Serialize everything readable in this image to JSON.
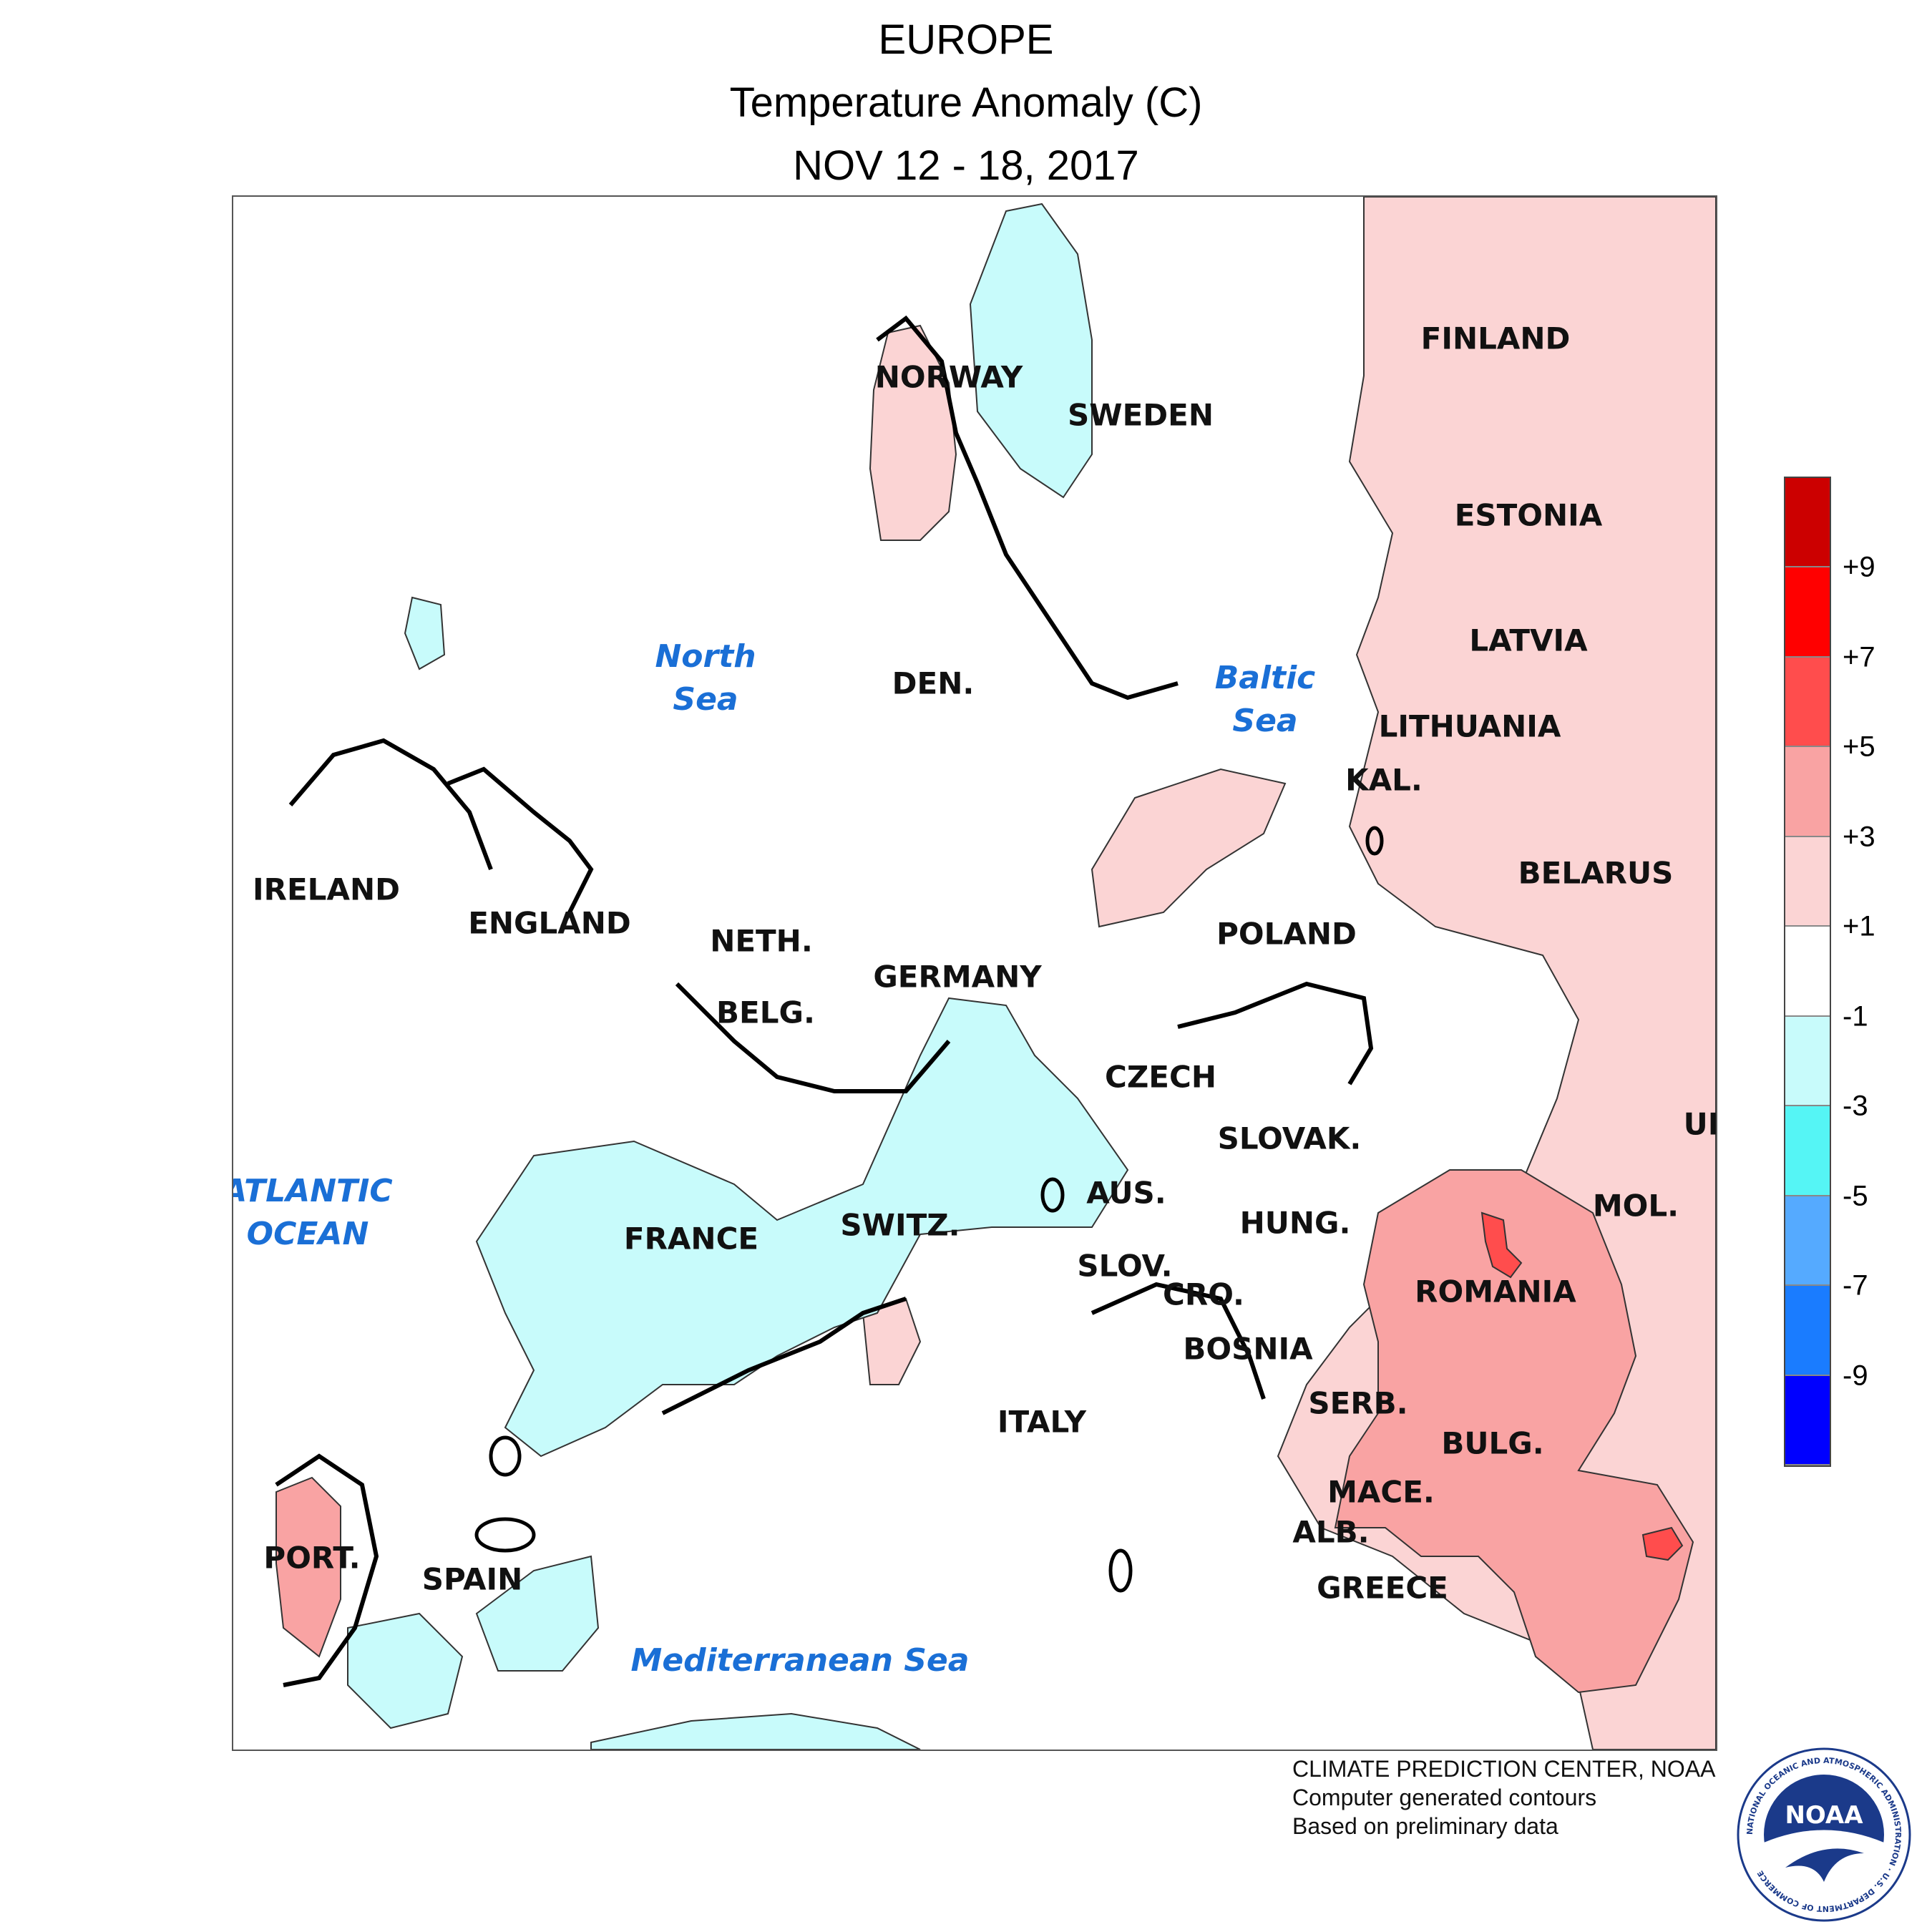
{
  "title": {
    "region": "EUROPE",
    "variable": "Temperature Anomaly (C)",
    "period": "NOV 12 - 18, 2017"
  },
  "countries": {
    "finland": "FINLAND",
    "norway": "NORWAY",
    "sweden": "SWEDEN",
    "estonia": "ESTONIA",
    "latvia": "LATVIA",
    "lithuania": "LITHUANIA",
    "denmark": "DEN.",
    "kaliningrad": "KAL.",
    "belarus": "BELARUS",
    "ireland": "IRELAND",
    "england": "ENGLAND",
    "poland": "POLAND",
    "netherlands": "NETH.",
    "germany": "GERMANY",
    "belgium": "BELG.",
    "czech": "CZECH",
    "ukraine": "UK",
    "slovakia": "SLOVAK.",
    "austria": "AUS.",
    "hungary": "HUNG.",
    "moldova": "MOL.",
    "france": "FRANCE",
    "switzerland": "SWITZ.",
    "slovenia": "SLOV.",
    "croatia": "CRO.",
    "romania": "ROMANIA",
    "bosnia": "BOSNIA",
    "serbia": "SERB.",
    "italy": "ITALY",
    "bulgaria": "BULG.",
    "macedonia": "MACE.",
    "albania": "ALB.",
    "portugal": "PORT.",
    "spain": "SPAIN",
    "greece": "GREECE"
  },
  "seas": {
    "north_sea": "North\nSea",
    "baltic_sea": "Baltic\nSea",
    "atlantic": "ATLANTIC\nOCEAN",
    "mediterranean": "Mediterranean Sea"
  },
  "legend": {
    "ticks": [
      "+9",
      "+7",
      "+5",
      "+3",
      "+1",
      "-1",
      "-3",
      "-5",
      "-7",
      "-9"
    ],
    "colors": [
      "#cc0000",
      "#ff0000",
      "#ff4d4d",
      "#f9a3a3",
      "#fbd4d4",
      "#ffffff",
      "#c8fbfb",
      "#55f5f5",
      "#55aaff",
      "#1a7cff",
      "#0000ff"
    ]
  },
  "credit": {
    "line1": "CLIMATE PREDICTION CENTER, NOAA",
    "line2": "Computer generated contours",
    "line3": "Based on preliminary data"
  },
  "logo": {
    "text": "NOAA",
    "ring_text": "NATIONAL OCEANIC AND ATMOSPHERIC ADMINISTRATION · U.S. DEPARTMENT OF COMMERCE"
  }
}
